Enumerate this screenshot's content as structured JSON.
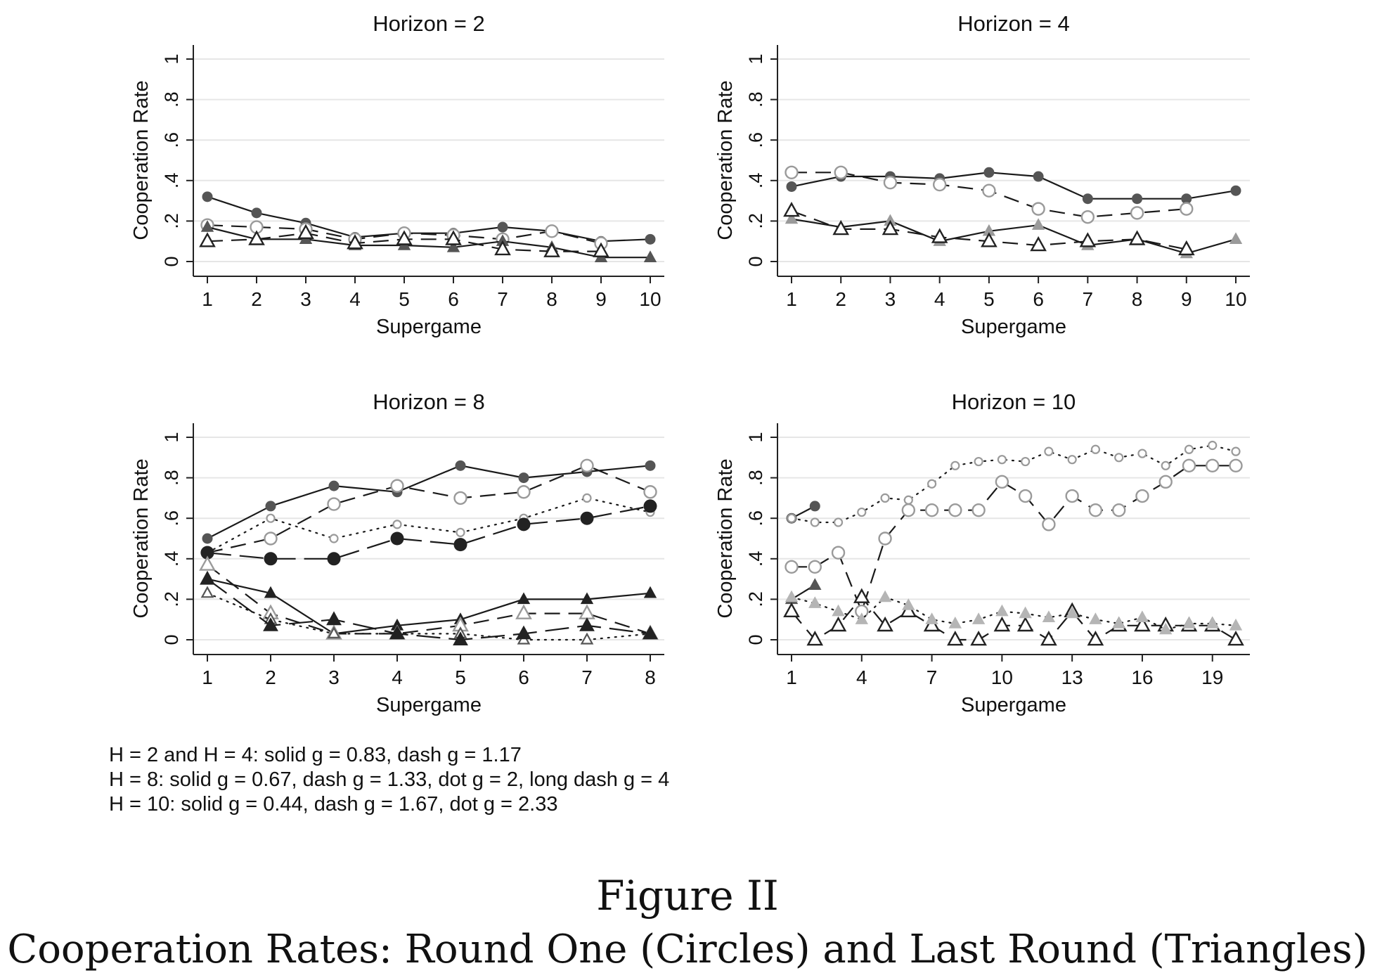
{
  "figure": {
    "title": "Figure II",
    "subtitle": "Cooperation Rates: Round One (Circles) and Last Round (Triangles)"
  },
  "notes": [
    "H = 2 and H = 4: solid g = 0.83, dash g = 1.17",
    "H = 8: solid g = 0.67, dash g = 1.33, dot g = 2, long dash g = 4",
    "H = 10: solid g = 0.44, dash g = 1.67, dot g = 2.33"
  ],
  "colors": {
    "dark": "#222222",
    "mid": "#555555",
    "light": "#9a9a9a",
    "lighter": "#b5b5b5",
    "grid": "#e6e6e6"
  },
  "chart_data": [
    {
      "type": "line",
      "title": "Horizon = 2",
      "xlabel": "Supergame",
      "ylabel": "Cooperation Rate",
      "xticks": [
        1,
        2,
        3,
        4,
        5,
        6,
        7,
        8,
        9,
        10
      ],
      "yticks": [
        "0",
        ".2",
        ".4",
        ".6",
        ".8",
        "1"
      ],
      "xlim": [
        1,
        10
      ],
      "ylim": [
        0,
        1
      ],
      "grid": true,
      "series": [
        {
          "x": [
            1,
            2,
            3,
            4,
            5,
            6,
            7,
            8,
            9,
            10
          ],
          "values": [
            0.32,
            0.24,
            0.19,
            0.12,
            0.14,
            0.14,
            0.17,
            0.15,
            0.1,
            0.11
          ],
          "line": "solid",
          "marker": "circle",
          "fill": "filled",
          "color": "mid"
        },
        {
          "x": [
            1,
            2,
            3,
            4,
            5,
            6,
            7,
            8,
            9
          ],
          "values": [
            0.18,
            0.17,
            0.16,
            0.11,
            0.14,
            0.13,
            0.11,
            0.15,
            0.09
          ],
          "line": "dash",
          "marker": "circle",
          "fill": "hollow",
          "color": "light"
        },
        {
          "x": [
            1,
            2,
            3,
            4,
            5,
            6,
            7,
            8,
            9,
            10
          ],
          "values": [
            0.17,
            0.11,
            0.11,
            0.08,
            0.08,
            0.07,
            0.1,
            0.07,
            0.02,
            0.02
          ],
          "line": "solid",
          "marker": "triangle",
          "fill": "filled",
          "color": "mid"
        },
        {
          "x": [
            1,
            2,
            3,
            4,
            5,
            6,
            7,
            8,
            9
          ],
          "values": [
            0.1,
            0.11,
            0.14,
            0.09,
            0.11,
            0.11,
            0.06,
            0.05,
            0.05
          ],
          "line": "dash",
          "marker": "triangle",
          "fill": "hollow",
          "color": "dark"
        }
      ]
    },
    {
      "type": "line",
      "title": "Horizon = 4",
      "xlabel": "Supergame",
      "ylabel": "Cooperation Rate",
      "xticks": [
        1,
        2,
        3,
        4,
        5,
        6,
        7,
        8,
        9,
        10
      ],
      "yticks": [
        "0",
        ".2",
        ".4",
        ".6",
        ".8",
        "1"
      ],
      "xlim": [
        1,
        10
      ],
      "ylim": [
        0,
        1
      ],
      "grid": true,
      "series": [
        {
          "x": [
            1,
            2,
            3,
            4,
            5,
            6,
            7,
            8,
            9,
            10
          ],
          "values": [
            0.37,
            0.42,
            0.42,
            0.41,
            0.44,
            0.42,
            0.31,
            0.31,
            0.31,
            0.35
          ],
          "line": "solid",
          "marker": "circle",
          "fill": "filled",
          "color": "mid"
        },
        {
          "x": [
            1,
            2,
            3,
            4,
            5,
            6,
            7,
            8,
            9
          ],
          "values": [
            0.44,
            0.44,
            0.39,
            0.38,
            0.35,
            0.26,
            0.22,
            0.24,
            0.26
          ],
          "line": "dash",
          "marker": "circle",
          "fill": "hollow",
          "color": "light"
        },
        {
          "x": [
            1,
            2,
            3,
            4,
            5,
            6,
            7,
            8,
            9,
            10
          ],
          "values": [
            0.21,
            0.17,
            0.2,
            0.1,
            0.15,
            0.18,
            0.08,
            0.11,
            0.04,
            0.11
          ],
          "line": "solid",
          "marker": "triangle",
          "fill": "filled",
          "color": "light"
        },
        {
          "x": [
            1,
            2,
            3,
            4,
            5,
            6,
            7,
            8,
            9
          ],
          "values": [
            0.25,
            0.16,
            0.16,
            0.12,
            0.1,
            0.08,
            0.1,
            0.11,
            0.06
          ],
          "line": "dash",
          "marker": "triangle",
          "fill": "hollow",
          "color": "dark"
        }
      ]
    },
    {
      "type": "line",
      "title": "Horizon = 8",
      "xlabel": "Supergame",
      "ylabel": "Cooperation Rate",
      "xticks": [
        1,
        2,
        3,
        4,
        5,
        6,
        7,
        8
      ],
      "yticks": [
        "0",
        ".2",
        ".4",
        ".6",
        ".8",
        "1"
      ],
      "xlim": [
        1,
        8
      ],
      "ylim": [
        0,
        1
      ],
      "grid": true,
      "series": [
        {
          "x": [
            1,
            2,
            3,
            4,
            5,
            6,
            7,
            8
          ],
          "values": [
            0.5,
            0.66,
            0.76,
            0.73,
            0.86,
            0.8,
            0.83,
            0.86
          ],
          "line": "solid",
          "marker": "circle",
          "fill": "filled",
          "color": "mid"
        },
        {
          "x": [
            1,
            2,
            3,
            4,
            5,
            6,
            7,
            8
          ],
          "values": [
            0.43,
            0.5,
            0.67,
            0.76,
            0.7,
            0.73,
            0.86,
            0.73
          ],
          "line": "dash",
          "marker": "circle",
          "fill": "hollow",
          "color": "light"
        },
        {
          "x": [
            1,
            2,
            3,
            4,
            5,
            6,
            7,
            8
          ],
          "values": [
            0.43,
            0.6,
            0.5,
            0.57,
            0.53,
            0.6,
            0.7,
            0.63
          ],
          "line": "dot",
          "marker": "circle",
          "fill": "hollow-small",
          "color": "light"
        },
        {
          "x": [
            1,
            2,
            3,
            4,
            5,
            6,
            7,
            8
          ],
          "values": [
            0.43,
            0.4,
            0.4,
            0.5,
            0.47,
            0.57,
            0.6,
            0.66
          ],
          "line": "longdash",
          "marker": "circle",
          "fill": "filled-large",
          "color": "dark"
        },
        {
          "x": [
            1,
            2,
            3,
            4,
            5,
            6,
            7,
            8
          ],
          "values": [
            0.3,
            0.23,
            0.03,
            0.07,
            0.1,
            0.2,
            0.2,
            0.23
          ],
          "line": "solid",
          "marker": "triangle",
          "fill": "filled",
          "color": "dark"
        },
        {
          "x": [
            1,
            2,
            3,
            4,
            5,
            6,
            7,
            8
          ],
          "values": [
            0.37,
            0.13,
            0.03,
            0.03,
            0.07,
            0.13,
            0.13,
            0.03
          ],
          "line": "dash",
          "marker": "triangle",
          "fill": "hollow",
          "color": "light"
        },
        {
          "x": [
            1,
            2,
            3,
            4,
            5,
            6,
            7,
            8
          ],
          "values": [
            0.23,
            0.1,
            0.03,
            0.03,
            0.03,
            0.0,
            0.0,
            0.03
          ],
          "line": "dot",
          "marker": "triangle",
          "fill": "hollow-small",
          "color": "mid"
        },
        {
          "x": [
            1,
            2,
            3,
            4,
            5,
            6,
            7,
            8
          ],
          "values": [
            0.3,
            0.07,
            0.1,
            0.03,
            0.0,
            0.03,
            0.07,
            0.03
          ],
          "line": "longdash",
          "marker": "triangle",
          "fill": "filled-large",
          "color": "dark"
        }
      ]
    },
    {
      "type": "line",
      "title": "Horizon = 10",
      "xlabel": "Supergame",
      "ylabel": "Cooperation Rate",
      "xticks": [
        1,
        4,
        7,
        10,
        13,
        16,
        19
      ],
      "yticks": [
        "0",
        ".2",
        ".4",
        ".6",
        ".8",
        "1"
      ],
      "xlim": [
        1,
        20
      ],
      "ylim": [
        0,
        1
      ],
      "grid": true,
      "series": [
        {
          "x": [
            1,
            2
          ],
          "values": [
            0.6,
            0.66
          ],
          "line": "solid",
          "marker": "circle",
          "fill": "filled",
          "color": "mid"
        },
        {
          "x": [
            1,
            2,
            3,
            4,
            5,
            6,
            7,
            8,
            9,
            10,
            11,
            12,
            13,
            14,
            15,
            16,
            17,
            18,
            19,
            20
          ],
          "values": [
            0.36,
            0.36,
            0.43,
            0.14,
            0.5,
            0.64,
            0.64,
            0.64,
            0.64,
            0.78,
            0.71,
            0.57,
            0.71,
            0.64,
            0.64,
            0.71,
            0.78,
            0.86,
            0.86,
            0.86
          ],
          "line": "dash",
          "marker": "circle",
          "fill": "hollow",
          "color": "light"
        },
        {
          "x": [
            1,
            2,
            3,
            4,
            5,
            6,
            7,
            8,
            9,
            10,
            11,
            12,
            13,
            14,
            15,
            16,
            17,
            18,
            19,
            20
          ],
          "values": [
            0.6,
            0.58,
            0.58,
            0.63,
            0.7,
            0.69,
            0.77,
            0.86,
            0.88,
            0.89,
            0.88,
            0.93,
            0.89,
            0.94,
            0.9,
            0.92,
            0.86,
            0.94,
            0.96,
            0.93
          ],
          "line": "dot",
          "marker": "circle",
          "fill": "hollow-small",
          "color": "light"
        },
        {
          "x": [
            1,
            2
          ],
          "values": [
            0.2,
            0.27
          ],
          "line": "solid",
          "marker": "triangle",
          "fill": "filled",
          "color": "mid"
        },
        {
          "x": [
            1,
            2,
            3,
            4,
            5,
            6,
            7,
            8,
            9,
            10,
            11,
            12,
            13,
            14,
            15,
            16,
            17,
            18,
            19,
            20
          ],
          "values": [
            0.14,
            0.0,
            0.07,
            0.21,
            0.07,
            0.14,
            0.07,
            0.0,
            0.0,
            0.07,
            0.07,
            0.0,
            0.14,
            0.0,
            0.07,
            0.07,
            0.07,
            0.07,
            0.07,
            0.0
          ],
          "line": "dash",
          "marker": "triangle",
          "fill": "hollow",
          "color": "dark"
        },
        {
          "x": [
            1,
            2,
            3,
            4,
            5,
            6,
            7,
            8,
            9,
            10,
            11,
            12,
            13,
            14,
            15,
            16,
            17,
            18,
            19,
            20
          ],
          "values": [
            0.21,
            0.18,
            0.14,
            0.1,
            0.21,
            0.17,
            0.1,
            0.08,
            0.1,
            0.14,
            0.13,
            0.11,
            0.13,
            0.1,
            0.08,
            0.11,
            0.05,
            0.08,
            0.08,
            0.07
          ],
          "line": "dot",
          "marker": "triangle",
          "fill": "filled",
          "color": "lighter"
        }
      ]
    }
  ]
}
